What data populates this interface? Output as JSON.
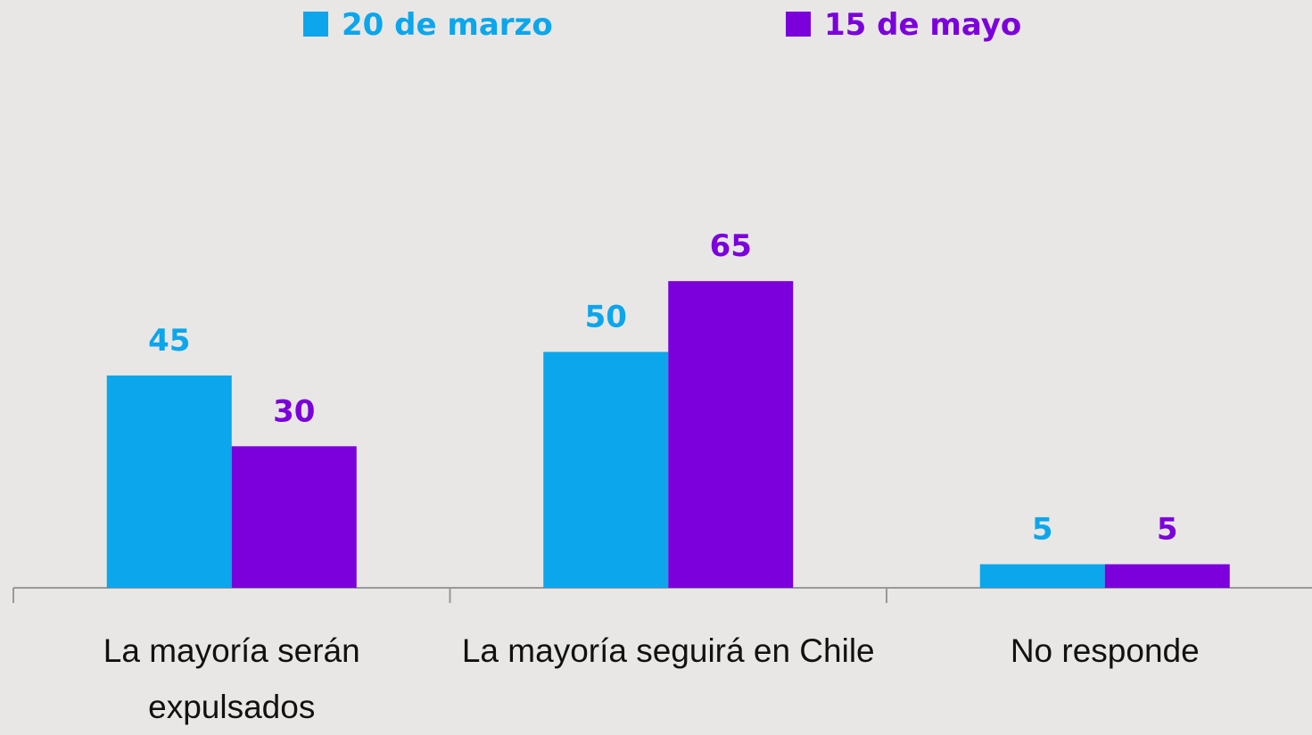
{
  "chart_data": {
    "type": "bar",
    "categories": [
      "La mayoría serán expulsados",
      "La mayoría seguirá en Chile",
      "No responde"
    ],
    "series": [
      {
        "name": "20 de marzo",
        "color": "#0ba6ec",
        "values": [
          45,
          50,
          5
        ]
      },
      {
        "name": "15 de mayo",
        "color": "#7b00db",
        "values": [
          30,
          65,
          5
        ]
      }
    ]
  }
}
